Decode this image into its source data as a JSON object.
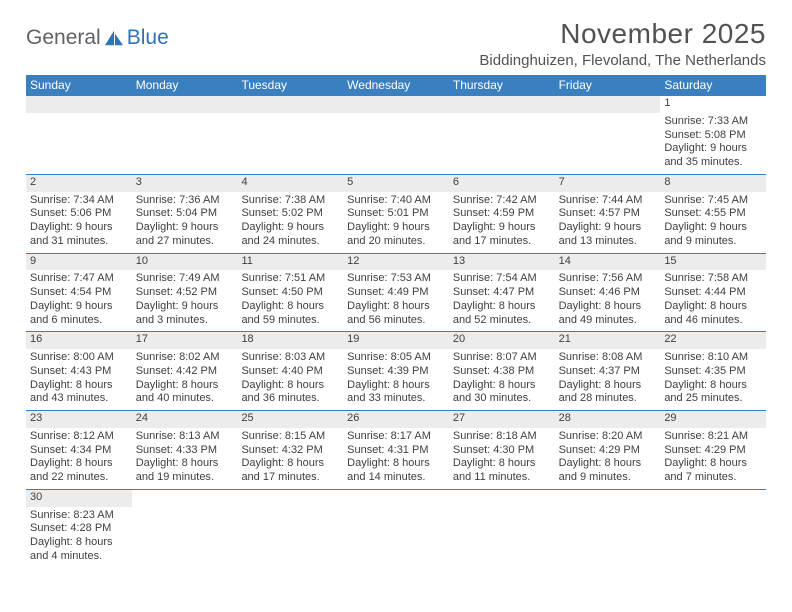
{
  "logo": {
    "text1": "General",
    "text2": "Blue"
  },
  "title": "November 2025",
  "location": "Biddinghuizen, Flevoland, The Netherlands",
  "colors": {
    "header_bg": "#3a7fbf",
    "header_text": "#ffffff",
    "daynum_bg": "#ececec",
    "text": "#404040",
    "title": "#525252",
    "rule": "#3a7fbf"
  },
  "fonts": {
    "title_size_pt": 21,
    "location_size_pt": 11,
    "dayhdr_size_pt": 9,
    "body_size_pt": 8
  },
  "day_names": [
    "Sunday",
    "Monday",
    "Tuesday",
    "Wednesday",
    "Thursday",
    "Friday",
    "Saturday"
  ],
  "weeks": [
    [
      null,
      null,
      null,
      null,
      null,
      null,
      {
        "n": "1",
        "sr": "7:33 AM",
        "ss": "5:08 PM",
        "dl": "9 hours and 35 minutes."
      }
    ],
    [
      {
        "n": "2",
        "sr": "7:34 AM",
        "ss": "5:06 PM",
        "dl": "9 hours and 31 minutes."
      },
      {
        "n": "3",
        "sr": "7:36 AM",
        "ss": "5:04 PM",
        "dl": "9 hours and 27 minutes."
      },
      {
        "n": "4",
        "sr": "7:38 AM",
        "ss": "5:02 PM",
        "dl": "9 hours and 24 minutes."
      },
      {
        "n": "5",
        "sr": "7:40 AM",
        "ss": "5:01 PM",
        "dl": "9 hours and 20 minutes."
      },
      {
        "n": "6",
        "sr": "7:42 AM",
        "ss": "4:59 PM",
        "dl": "9 hours and 17 minutes."
      },
      {
        "n": "7",
        "sr": "7:44 AM",
        "ss": "4:57 PM",
        "dl": "9 hours and 13 minutes."
      },
      {
        "n": "8",
        "sr": "7:45 AM",
        "ss": "4:55 PM",
        "dl": "9 hours and 9 minutes."
      }
    ],
    [
      {
        "n": "9",
        "sr": "7:47 AM",
        "ss": "4:54 PM",
        "dl": "9 hours and 6 minutes."
      },
      {
        "n": "10",
        "sr": "7:49 AM",
        "ss": "4:52 PM",
        "dl": "9 hours and 3 minutes."
      },
      {
        "n": "11",
        "sr": "7:51 AM",
        "ss": "4:50 PM",
        "dl": "8 hours and 59 minutes."
      },
      {
        "n": "12",
        "sr": "7:53 AM",
        "ss": "4:49 PM",
        "dl": "8 hours and 56 minutes."
      },
      {
        "n": "13",
        "sr": "7:54 AM",
        "ss": "4:47 PM",
        "dl": "8 hours and 52 minutes."
      },
      {
        "n": "14",
        "sr": "7:56 AM",
        "ss": "4:46 PM",
        "dl": "8 hours and 49 minutes."
      },
      {
        "n": "15",
        "sr": "7:58 AM",
        "ss": "4:44 PM",
        "dl": "8 hours and 46 minutes."
      }
    ],
    [
      {
        "n": "16",
        "sr": "8:00 AM",
        "ss": "4:43 PM",
        "dl": "8 hours and 43 minutes."
      },
      {
        "n": "17",
        "sr": "8:02 AM",
        "ss": "4:42 PM",
        "dl": "8 hours and 40 minutes."
      },
      {
        "n": "18",
        "sr": "8:03 AM",
        "ss": "4:40 PM",
        "dl": "8 hours and 36 minutes."
      },
      {
        "n": "19",
        "sr": "8:05 AM",
        "ss": "4:39 PM",
        "dl": "8 hours and 33 minutes."
      },
      {
        "n": "20",
        "sr": "8:07 AM",
        "ss": "4:38 PM",
        "dl": "8 hours and 30 minutes."
      },
      {
        "n": "21",
        "sr": "8:08 AM",
        "ss": "4:37 PM",
        "dl": "8 hours and 28 minutes."
      },
      {
        "n": "22",
        "sr": "8:10 AM",
        "ss": "4:35 PM",
        "dl": "8 hours and 25 minutes."
      }
    ],
    [
      {
        "n": "23",
        "sr": "8:12 AM",
        "ss": "4:34 PM",
        "dl": "8 hours and 22 minutes."
      },
      {
        "n": "24",
        "sr": "8:13 AM",
        "ss": "4:33 PM",
        "dl": "8 hours and 19 minutes."
      },
      {
        "n": "25",
        "sr": "8:15 AM",
        "ss": "4:32 PM",
        "dl": "8 hours and 17 minutes."
      },
      {
        "n": "26",
        "sr": "8:17 AM",
        "ss": "4:31 PM",
        "dl": "8 hours and 14 minutes."
      },
      {
        "n": "27",
        "sr": "8:18 AM",
        "ss": "4:30 PM",
        "dl": "8 hours and 11 minutes."
      },
      {
        "n": "28",
        "sr": "8:20 AM",
        "ss": "4:29 PM",
        "dl": "8 hours and 9 minutes."
      },
      {
        "n": "29",
        "sr": "8:21 AM",
        "ss": "4:29 PM",
        "dl": "8 hours and 7 minutes."
      }
    ],
    [
      {
        "n": "30",
        "sr": "8:23 AM",
        "ss": "4:28 PM",
        "dl": "8 hours and 4 minutes."
      },
      null,
      null,
      null,
      null,
      null,
      null
    ]
  ],
  "labels": {
    "sunrise": "Sunrise: ",
    "sunset": "Sunset: ",
    "daylight": "Daylight: "
  }
}
